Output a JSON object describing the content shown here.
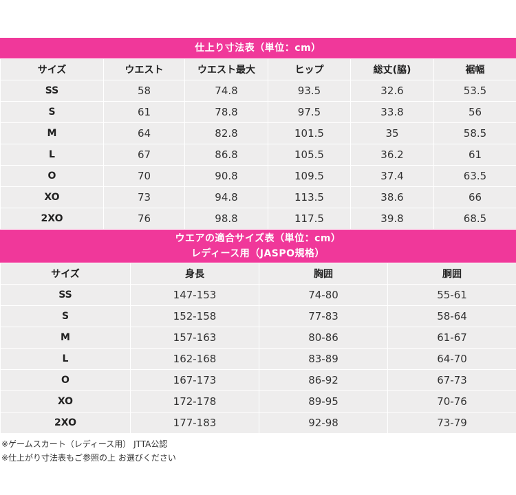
{
  "finished_table": {
    "title": "仕上り寸法表（単位：cm）",
    "headers": [
      "サイズ",
      "ウエスト",
      "ウエスト最大",
      "ヒップ",
      "総丈(脇)",
      "裾幅"
    ],
    "rows": [
      [
        "SS",
        "58",
        "74.8",
        "93.5",
        "32.6",
        "53.5"
      ],
      [
        "S",
        "61",
        "78.8",
        "97.5",
        "33.8",
        "56"
      ],
      [
        "M",
        "64",
        "82.8",
        "101.5",
        "35",
        "58.5"
      ],
      [
        "L",
        "67",
        "86.8",
        "105.5",
        "36.2",
        "61"
      ],
      [
        "O",
        "70",
        "90.8",
        "109.5",
        "37.4",
        "63.5"
      ],
      [
        "XO",
        "73",
        "94.8",
        "113.5",
        "38.6",
        "66"
      ],
      [
        "2XO",
        "76",
        "98.8",
        "117.5",
        "39.8",
        "68.5"
      ]
    ]
  },
  "fit_table": {
    "title_line1": "ウエアの適合サイズ表（単位：cm）",
    "title_line2": "レディース用（JASPO規格）",
    "headers": [
      "サイズ",
      "身長",
      "胸囲",
      "胴囲"
    ],
    "rows": [
      [
        "SS",
        "147-153",
        "74-80",
        "55-61"
      ],
      [
        "S",
        "152-158",
        "77-83",
        "58-64"
      ],
      [
        "M",
        "157-163",
        "80-86",
        "61-67"
      ],
      [
        "L",
        "162-168",
        "83-89",
        "64-70"
      ],
      [
        "O",
        "167-173",
        "86-92",
        "67-73"
      ],
      [
        "XO",
        "172-178",
        "89-95",
        "70-76"
      ],
      [
        "2XO",
        "177-183",
        "92-98",
        "73-79"
      ]
    ]
  },
  "notes": [
    "※ゲームスカート（レディース用） JTTA公認",
    "※仕上がり寸法表もご参照の上 お選びください"
  ],
  "colors": {
    "accent": "#f0389a",
    "cell_bg": "#eeeded"
  }
}
